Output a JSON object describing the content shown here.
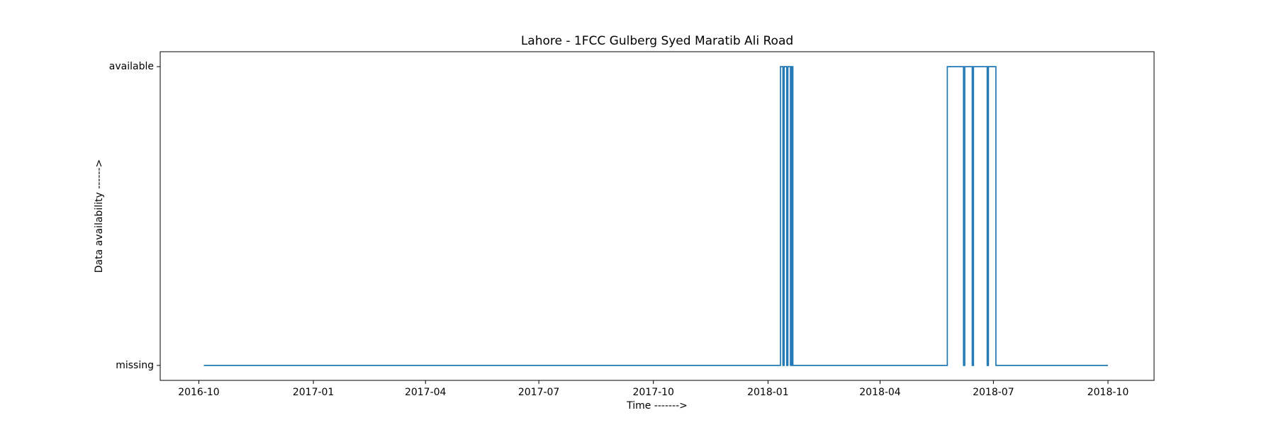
{
  "chart_data": {
    "type": "line",
    "title": "Lahore - 1FCC Gulberg Syed Maratib Ali Road",
    "x_label": "Time ------->",
    "y_label": "Data availability ------>",
    "step": "post",
    "x": [
      "2016-10-05",
      "2018-01-11",
      "2018-01-13",
      "2018-01-14",
      "2018-01-16",
      "2018-01-17",
      "2018-01-19",
      "2018-01-20",
      "2018-01-21",
      "2018-05-25",
      "2018-06-07",
      "2018-06-08",
      "2018-06-14",
      "2018-06-15",
      "2018-06-26",
      "2018-06-27",
      "2018-07-03",
      "2018-10-01"
    ],
    "series": [
      {
        "name": "availability",
        "color": "#1f77b4",
        "values": [
          0,
          1,
          0,
          1,
          0,
          1,
          0,
          1,
          0,
          1,
          0,
          1,
          0,
          1,
          0,
          1,
          0,
          0
        ]
      }
    ],
    "xlim": [
      "2016-08-31",
      "2018-11-07"
    ],
    "xticks": [
      "2016-10",
      "2017-01",
      "2017-04",
      "2017-07",
      "2017-10",
      "2018-01",
      "2018-04",
      "2018-07",
      "2018-10"
    ],
    "ylim": [
      -0.05,
      1.05
    ],
    "yticks": [
      {
        "value": 0,
        "label": "missing"
      },
      {
        "value": 1,
        "label": "available"
      }
    ],
    "grid": false
  }
}
